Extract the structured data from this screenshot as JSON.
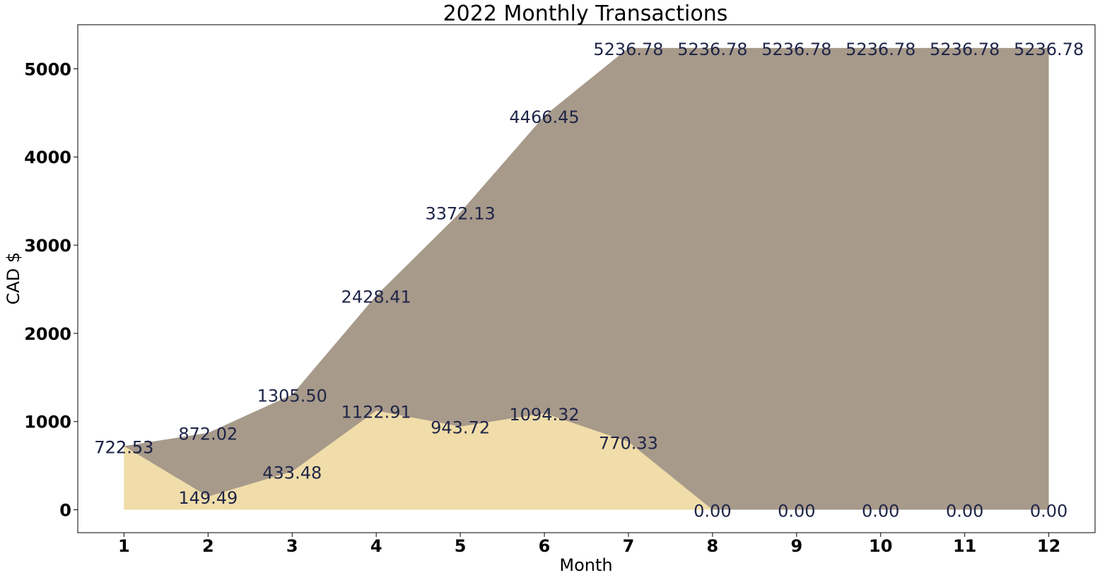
{
  "chart_data": {
    "type": "area",
    "title": "2022 Monthly Transactions",
    "xlabel": "Month",
    "ylabel": "CAD $",
    "x": [
      1,
      2,
      3,
      4,
      5,
      6,
      7,
      8,
      9,
      10,
      11,
      12
    ],
    "x_tick_labels": [
      "1",
      "2",
      "3",
      "4",
      "5",
      "6",
      "7",
      "8",
      "9",
      "10",
      "11",
      "12"
    ],
    "y_ticks": [
      0,
      1000,
      2000,
      3000,
      4000,
      5000
    ],
    "y_tick_labels": [
      "0",
      "1000",
      "2000",
      "3000",
      "4000",
      "5000"
    ],
    "xlim": [
      0.45,
      12.55
    ],
    "ylim": [
      -260,
      5500
    ],
    "grid": false,
    "series": [
      {
        "key": "cumulative",
        "values": [
          722.53,
          872.02,
          1305.5,
          2428.41,
          3372.13,
          4466.45,
          5236.78,
          5236.78,
          5236.78,
          5236.78,
          5236.78,
          5236.78
        ],
        "labels": [
          "722.53",
          "872.02",
          "1305.50",
          "2428.41",
          "3372.13",
          "4466.45",
          "5236.78",
          "5236.78",
          "5236.78",
          "5236.78",
          "5236.78",
          "5236.78"
        ],
        "color": "#a79a8a"
      },
      {
        "key": "monthly",
        "values": [
          722.53,
          149.49,
          433.48,
          1122.91,
          943.72,
          1094.32,
          770.33,
          0.0,
          0.0,
          0.0,
          0.0,
          0.0
        ],
        "labels": [
          "722.53",
          "149.49",
          "433.48",
          "1122.91",
          "943.72",
          "1094.32",
          "770.33",
          "0.00",
          "0.00",
          "0.00",
          "0.00",
          "0.00"
        ],
        "color": "#f0dda9"
      }
    ],
    "label_color": "#1f2548"
  }
}
